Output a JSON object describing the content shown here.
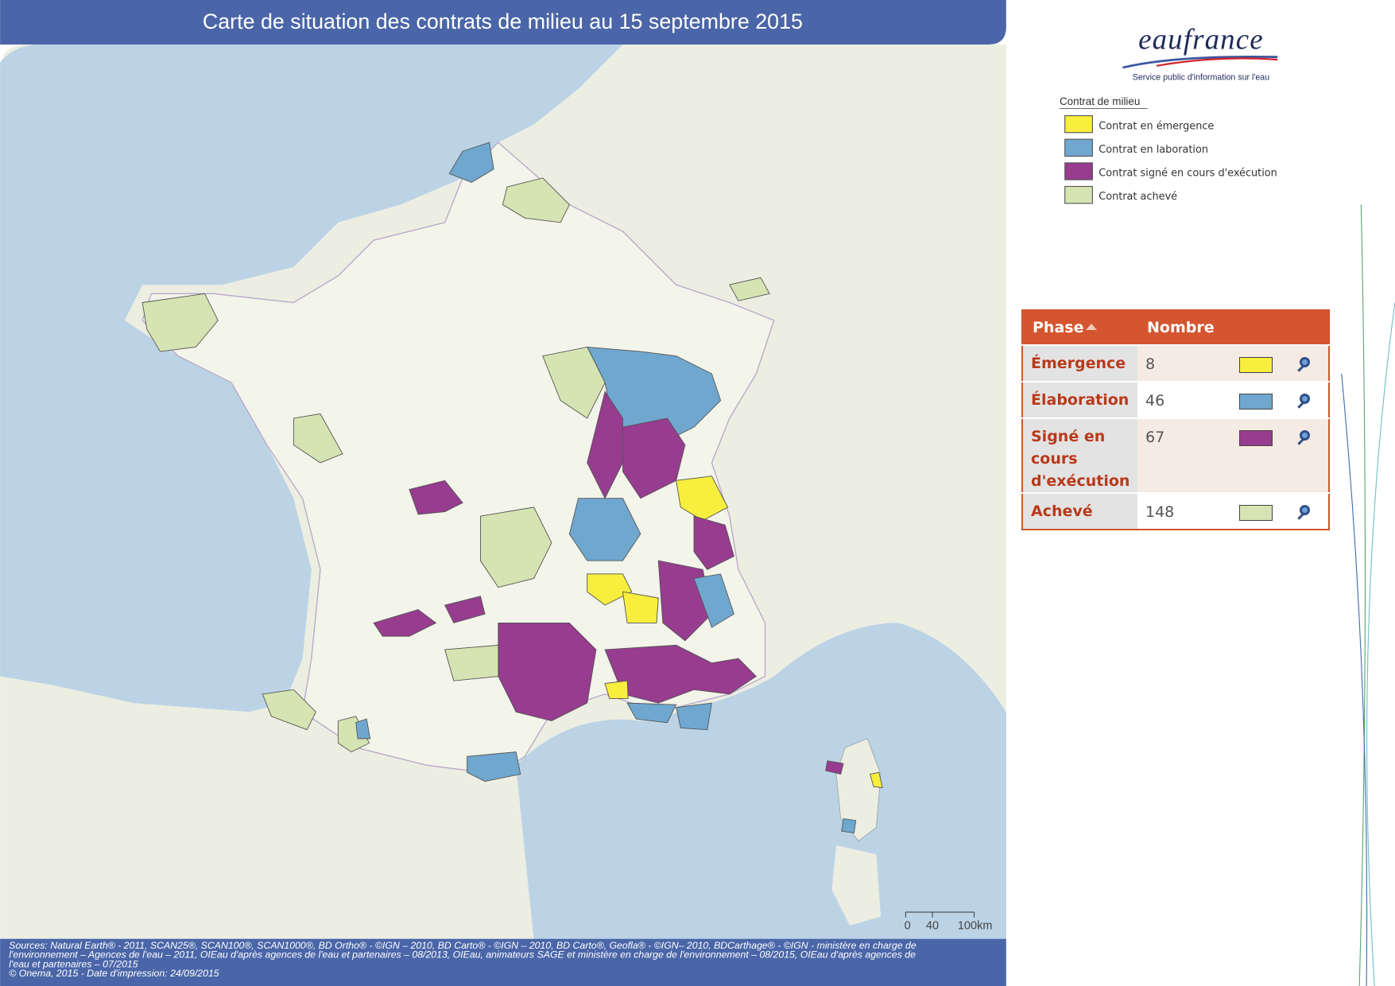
{
  "header": {
    "title": "Carte de situation des contrats de milieu au 15 septembre 2015"
  },
  "logo": {
    "name": "eaufrance",
    "tagline": "Service public d'information sur l'eau"
  },
  "legend": {
    "title": "Contrat de milieu",
    "items": [
      {
        "label": "Contrat en émergence",
        "color": "#f7ee3d"
      },
      {
        "label": "Contrat en laboration",
        "color": "#6fa7cf"
      },
      {
        "label": "Contrat signé en cours d'exécution",
        "color": "#973c8f"
      },
      {
        "label": "Contrat achevé",
        "color": "#d5e4b2"
      }
    ]
  },
  "table": {
    "columns": [
      "Phase",
      "Nombre"
    ],
    "rows": [
      {
        "phase": "Émergence",
        "count": 8,
        "color": "#f7ee3d"
      },
      {
        "phase": "Élaboration",
        "count": 46,
        "color": "#6fa7cf"
      },
      {
        "phase": "Signé en cours d'exécution",
        "count": 67,
        "color": "#973c8f"
      },
      {
        "phase": "Achevé",
        "count": 148,
        "color": "#d5e4b2"
      }
    ]
  },
  "scale_bar": {
    "labels": [
      "0",
      "40",
      "100km"
    ]
  },
  "footer": {
    "sources": [
      "Sources: Natural Earth® - 2011, SCAN25®, SCAN100®, SCAN1000®, BD Ortho® - ©IGN – 2010, BD Carto® - ©IGN – 2010, BD Carto®, Geofla® - ©IGN– 2010, BDCarthage® - ©IGN - ministère en charge de",
      "l'environnement – Agences de l'eau – 2011, OIEau d'après agences de l'eau et partenaires – 08/2013, OIEau, animateurs SAGE et ministère en charge de l'environnement – 08/2015, OIEau d'après agences de",
      "l'eau et partenaires – 07/2015"
    ],
    "credit": "© Onema, 2015 - Date d'impression: 24/09/2015"
  }
}
